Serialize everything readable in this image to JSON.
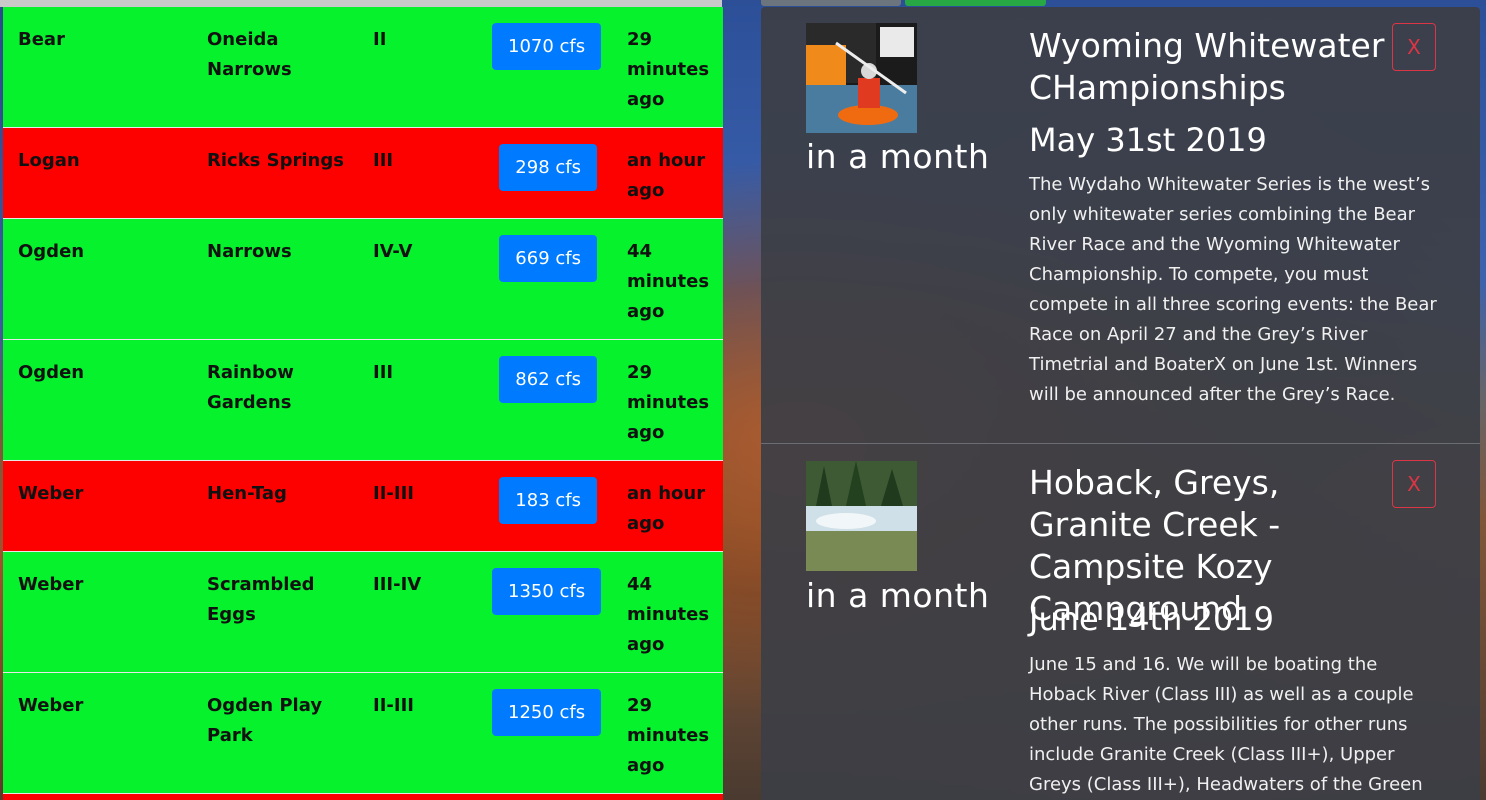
{
  "rivers": [
    {
      "river": "Bear",
      "section": "Oneida Narrows",
      "class": "II",
      "flow": "1070 cfs",
      "updated": "29 minutes ago",
      "status": "green"
    },
    {
      "river": "Logan",
      "section": "Ricks Springs",
      "class": "III",
      "flow": "298 cfs",
      "updated": "an hour ago",
      "status": "red"
    },
    {
      "river": "Ogden",
      "section": "Narrows",
      "class": "IV-V",
      "flow": "669 cfs",
      "updated": "44 minutes ago",
      "status": "green"
    },
    {
      "river": "Ogden",
      "section": "Rainbow Gardens",
      "class": "III",
      "flow": "862 cfs",
      "updated": "29 minutes ago",
      "status": "green"
    },
    {
      "river": "Weber",
      "section": "Hen-Tag",
      "class": "II-III",
      "flow": "183 cfs",
      "updated": "an hour ago",
      "status": "red"
    },
    {
      "river": "Weber",
      "section": "Scrambled Eggs",
      "class": "III-IV",
      "flow": "1350 cfs",
      "updated": "44 minutes ago",
      "status": "green"
    },
    {
      "river": "Weber",
      "section": "Ogden Play Park",
      "class": "II-III",
      "flow": "1250 cfs",
      "updated": "29 minutes ago",
      "status": "green"
    }
  ],
  "events": [
    {
      "when": "in a month",
      "title": "Wyoming Whitewater CHampionships",
      "date": "May 31st 2019",
      "description": "The Wydaho Whitewater Series is the west’s only whitewater series combining the Bear River Race and the Wyoming Whitewater Championship. To compete, you must compete in all three scoring events: the Bear Race on April 27 and the Grey’s River Timetrial and BoaterX on June 1st. Winners will be announced after the Grey’s Race.",
      "close": "X"
    },
    {
      "when": "in a month",
      "title": "Hoback, Greys, Granite Creek - Campsite Kozy Campground",
      "date": "June 14th 2019",
      "description": "June 15 and 16. We will be boating the Hoback River (Class III) as well as a couple other runs. The possibilities for other runs include Granite Creek (Class III+), Upper Greys (Class III+), Headwaters of the Green (Class",
      "close": "X"
    }
  ],
  "colors": {
    "green": "#05f22c",
    "red": "#fd0000",
    "button": "#007bff"
  }
}
